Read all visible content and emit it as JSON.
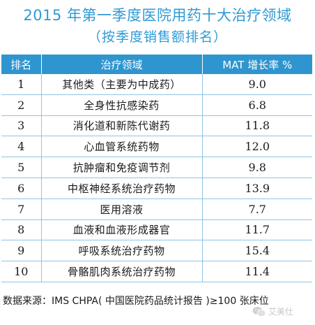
{
  "title_line1": "2015 年第一季度医院用药十大治疗领域",
  "title_line2": "（按季度销售额排名）",
  "table": {
    "headers": [
      "排名",
      "治疗领域",
      "MAT 增长率 %"
    ],
    "rows": [
      {
        "rank": "1",
        "area": "其他类（主要为中成药）",
        "mat": "9.0"
      },
      {
        "rank": "2",
        "area": "全身性抗感染药",
        "mat": "6.8"
      },
      {
        "rank": "3",
        "area": "消化道和新陈代谢药",
        "mat": "11.8"
      },
      {
        "rank": "4",
        "area": "心血管系统药物",
        "mat": "12.0"
      },
      {
        "rank": "5",
        "area": "抗肿瘤和免疫调节剂",
        "mat": "9.8"
      },
      {
        "rank": "6",
        "area": "中枢神经系统治疗药物",
        "mat": "13.9"
      },
      {
        "rank": "7",
        "area": "医用溶液",
        "mat": "7.7"
      },
      {
        "rank": "8",
        "area": "血液和血液形成器官",
        "mat": "11.7"
      },
      {
        "rank": "9",
        "area": "呼吸系统治疗药物",
        "mat": "15.4"
      },
      {
        "rank": "10",
        "area": "骨骼肌肉系统治疗药物",
        "mat": "11.4"
      }
    ]
  },
  "source": "数据来源：IMS CHPA( 中国医院药品统计报告 )≥100 张床位",
  "watermark": {
    "text": "艾美仕",
    "icon": "wechat-icon",
    "color": "#c8c8c8"
  },
  "colors": {
    "title": "#2e9ad6",
    "header_bg": "#2f95cf",
    "grid": "#8fc4e5"
  }
}
